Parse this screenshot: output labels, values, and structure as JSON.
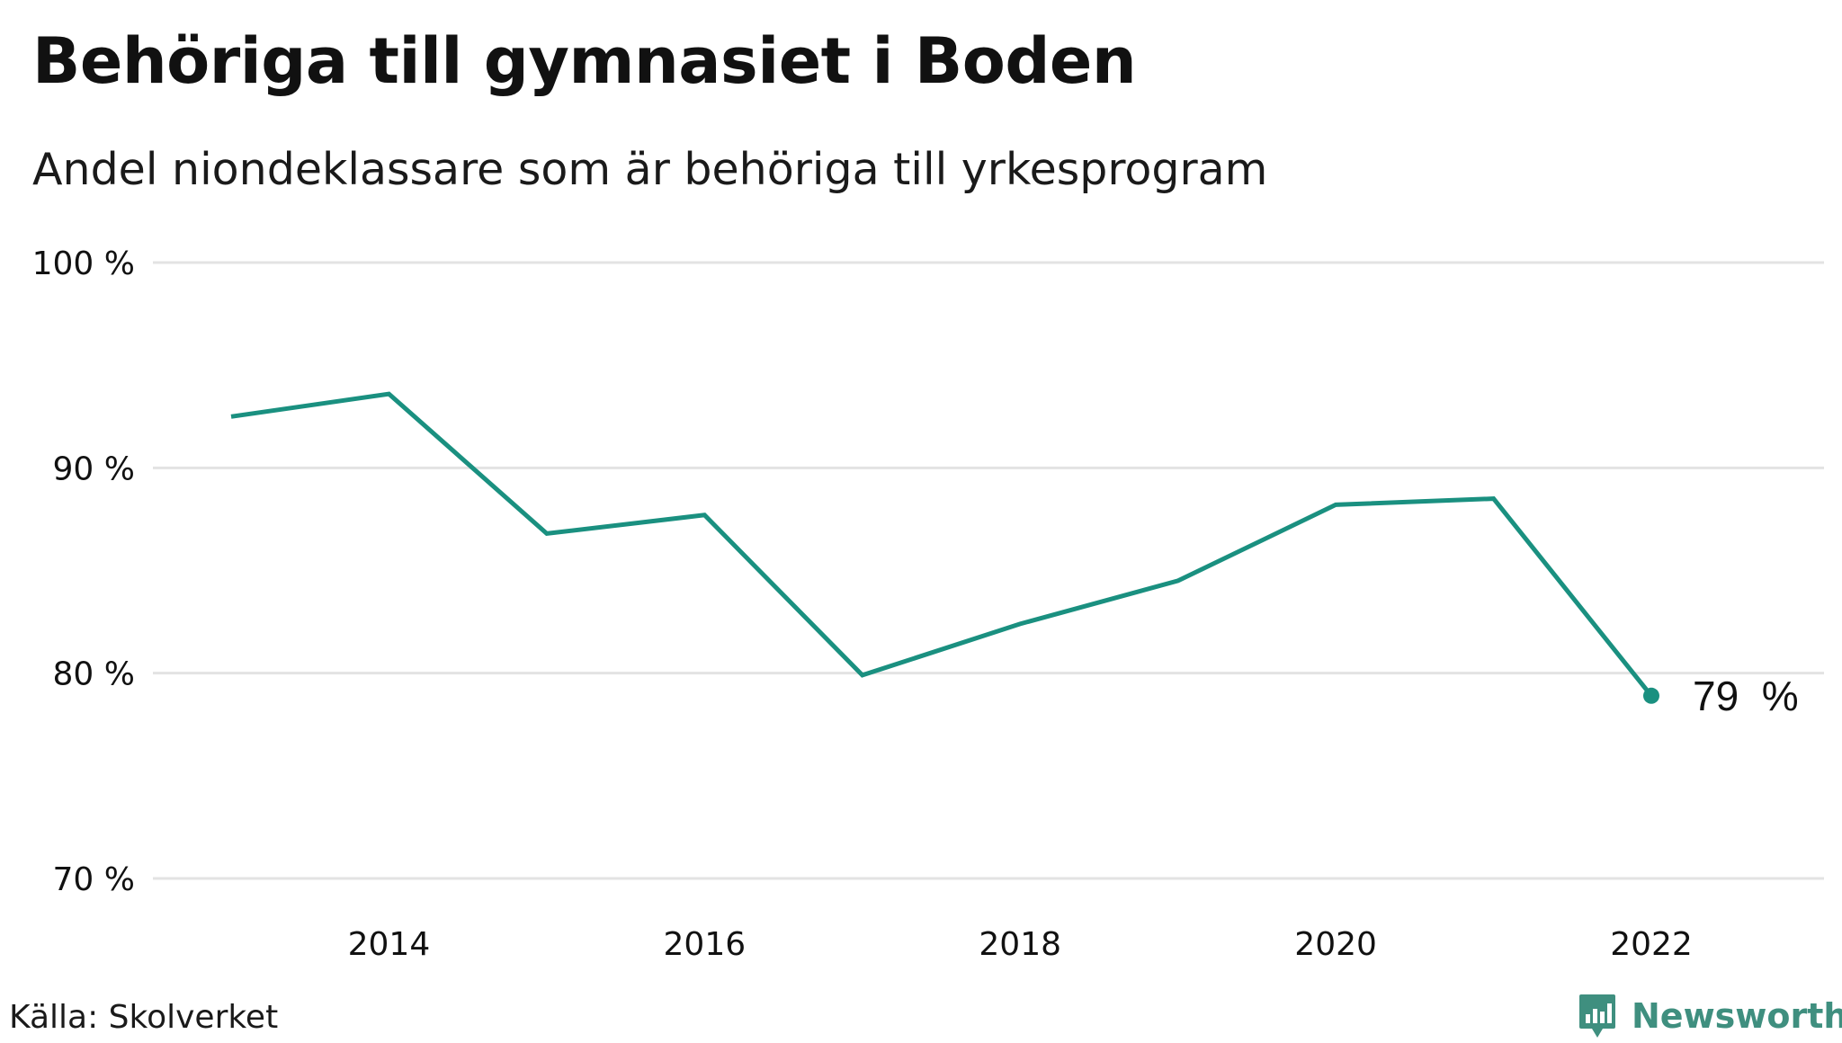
{
  "header": {
    "title": "Behöriga till gymnasiet i Boden",
    "subtitle": "Andel niondeklassare som är behöriga till yrkesprogram"
  },
  "footer": {
    "source": "Källa: Skolverket",
    "brand": "Newsworthy"
  },
  "colors": {
    "line": "#1a9080",
    "grid": "#e3e3e3",
    "text": "#111111",
    "brand": "#3f8f7f"
  },
  "chart_data": {
    "type": "line",
    "x": [
      2013,
      2014,
      2015,
      2016,
      2017,
      2018,
      2019,
      2020,
      2021,
      2022
    ],
    "values": [
      92.5,
      93.6,
      86.8,
      87.7,
      79.9,
      82.4,
      84.5,
      88.2,
      88.5,
      78.9
    ],
    "ylim": [
      70,
      100
    ],
    "xlim": [
      2012.5,
      2022.85
    ],
    "yticks": [
      70,
      80,
      90,
      100
    ],
    "ytick_labels": [
      "70 %",
      "80 %",
      "90 %",
      "100 %"
    ],
    "xticks": [
      2014,
      2016,
      2018,
      2020,
      2022
    ],
    "xtick_labels": [
      "2014",
      "2016",
      "2018",
      "2020",
      "2022"
    ],
    "end_label": "79  %",
    "grid": true,
    "xlabel": "",
    "ylabel": ""
  }
}
